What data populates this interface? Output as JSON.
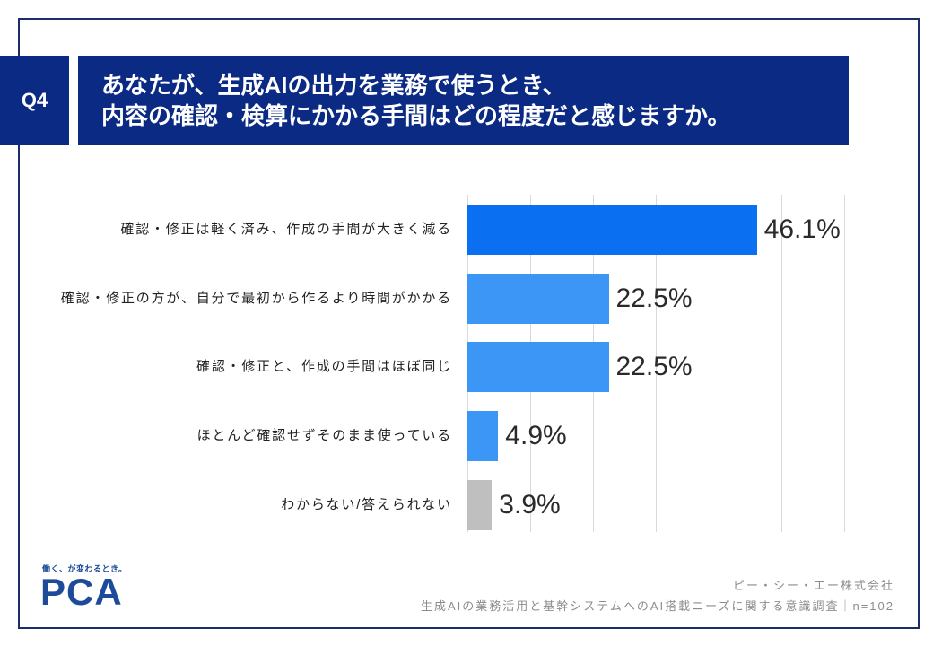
{
  "question": {
    "label": "Q4",
    "title_lines": [
      "あなたが、生成AIの出力を業務で使うとき、",
      "内容の確認・検算にかかる手間はどの程度だと感じますか。"
    ]
  },
  "chart_data": {
    "type": "bar",
    "orientation": "horizontal",
    "categories": [
      "確認・修正は軽く済み、作成の手間が大きく減る",
      "確認・修正の方が、自分で最初から作るより時間がかかる",
      "確認・修正と、作成の手間はほぼ同じ",
      "ほとんど確認せずそのまま使っている",
      "わからない/答えられない"
    ],
    "values": [
      46.1,
      22.5,
      22.5,
      4.9,
      3.9
    ],
    "value_labels": [
      "46.1%",
      "22.5%",
      "22.5%",
      "4.9%",
      "3.9%"
    ],
    "unit": "%",
    "xlim": [
      0,
      60
    ],
    "grid": true,
    "grid_interval": 10,
    "colors": [
      "#0b6ff2",
      "#3c96f6",
      "#3c96f6",
      "#3c96f6",
      "#bfbfbf"
    ]
  },
  "logo": {
    "tagline": "働く、が変わるとき。",
    "text": "PCA"
  },
  "footer": {
    "company": "ピー・シー・エー株式会社",
    "survey": "生成AIの業務活用と基幹システムへのAI搭載ニーズに関する意識調査｜n=102"
  },
  "theme": {
    "navy": "#0a2a83",
    "frame": "#1a2d6c",
    "logo_blue": "#1d4b9a"
  }
}
